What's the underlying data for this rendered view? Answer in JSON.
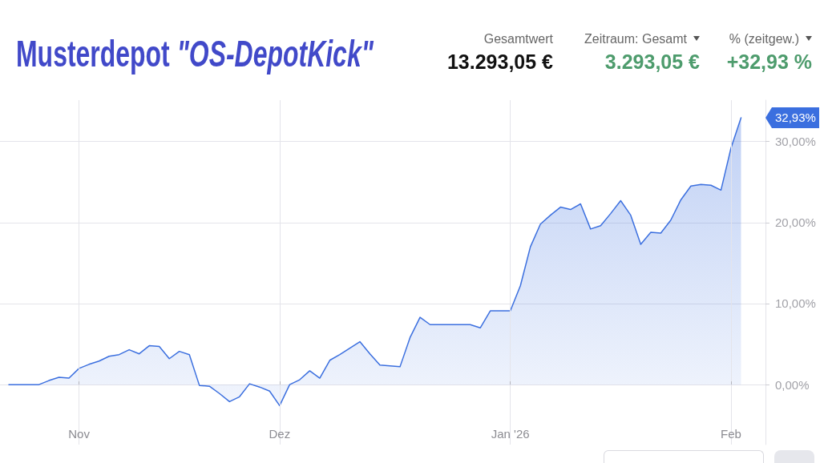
{
  "chart_data": {
    "type": "area",
    "title": "Musterdepot \"OS-DepotKick\"",
    "categories": [
      null,
      null,
      null,
      null,
      null,
      null,
      null,
      "Nov",
      null,
      null,
      null,
      null,
      null,
      null,
      null,
      null,
      null,
      null,
      null,
      null,
      null,
      null,
      null,
      null,
      null,
      null,
      null,
      "Dez",
      null,
      null,
      null,
      null,
      null,
      null,
      null,
      null,
      null,
      null,
      null,
      null,
      null,
      null,
      null,
      null,
      null,
      null,
      null,
      null,
      null,
      null,
      "Jan '26",
      null,
      null,
      null,
      null,
      null,
      null,
      null,
      null,
      null,
      null,
      null,
      null,
      null,
      null,
      null,
      null,
      null,
      null,
      null,
      null,
      null,
      "Feb",
      null
    ],
    "values": [
      0,
      0,
      0,
      0,
      0.5,
      0.9,
      0.8,
      2.0,
      2.5,
      2.9,
      3.5,
      3.7,
      4.3,
      3.8,
      4.8,
      4.7,
      3.2,
      4.1,
      3.7,
      -0.1,
      -0.2,
      -1.1,
      -2.1,
      -1.5,
      0.1,
      -0.3,
      -0.8,
      -2.6,
      0.0,
      0.6,
      1.7,
      0.8,
      3.0,
      3.7,
      4.5,
      5.3,
      3.8,
      2.4,
      2.3,
      2.2,
      5.8,
      8.3,
      7.4,
      7.4,
      7.4,
      7.4,
      7.4,
      7.0,
      9.1,
      9.1,
      9.1,
      12.2,
      17.0,
      19.8,
      20.9,
      21.9,
      21.6,
      22.3,
      19.2,
      19.6,
      21.1,
      22.7,
      20.9,
      17.3,
      18.8,
      18.7,
      20.3,
      22.8,
      24.5,
      24.7,
      24.6,
      24.0,
      29.2,
      32.93
    ],
    "color": "#3b6fdf",
    "ylim": [
      -7.4,
      35.1
    ],
    "yticks": [
      {
        "value": 0,
        "label": "0,00%"
      },
      {
        "value": 10,
        "label": "10,00%"
      },
      {
        "value": 20,
        "label": "20,00%"
      },
      {
        "value": 30,
        "label": "30,00%"
      }
    ],
    "grid": true,
    "marker": "none",
    "annotations": [
      "32,93%",
      "Gesamtwert",
      "13.293,05 €",
      "Zeitraum: Gesamt",
      "3.293,05 €",
      "% (zeitgew.)",
      "+32,93 %"
    ]
  }
}
